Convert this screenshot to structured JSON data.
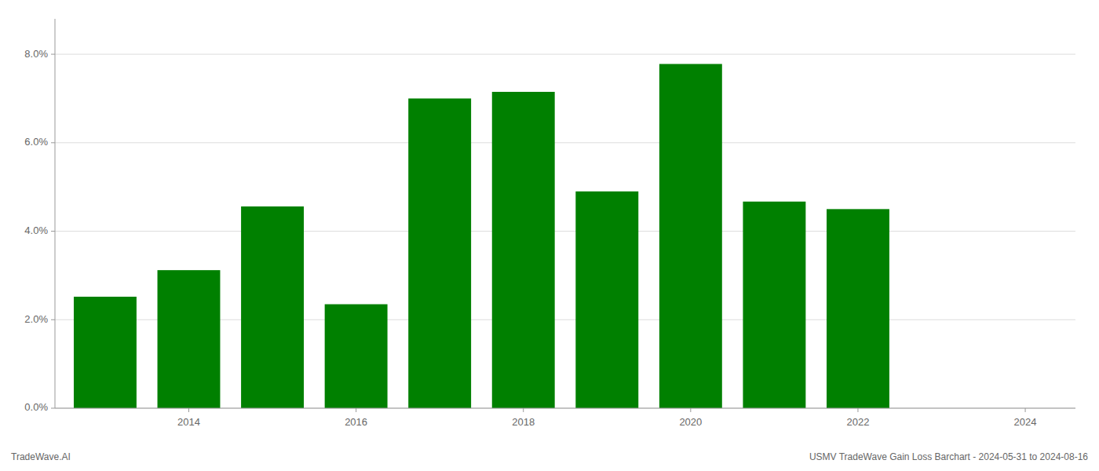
{
  "chart_data": {
    "type": "bar",
    "x": [
      2013,
      2014,
      2015,
      2016,
      2017,
      2018,
      2019,
      2020,
      2021,
      2022
    ],
    "values": [
      0.0252,
      0.0312,
      0.0456,
      0.0235,
      0.07,
      0.0715,
      0.049,
      0.0778,
      0.0467,
      0.045
    ],
    "color": "#008000",
    "xlim": [
      2012.4,
      2024.6
    ],
    "xticks": [
      2014,
      2016,
      2018,
      2020,
      2022,
      2024
    ],
    "ylim": [
      0,
      0.088
    ],
    "yticks": [
      {
        "value": 0.0,
        "label": "0.0%"
      },
      {
        "value": 0.02,
        "label": "2.0%"
      },
      {
        "value": 0.04,
        "label": "4.0%"
      },
      {
        "value": 0.06,
        "label": "6.0%"
      },
      {
        "value": 0.08,
        "label": "8.0%"
      }
    ],
    "grid": true,
    "annotations": [
      "TradeWave.AI",
      "USMV TradeWave Gain Loss Barchart - 2024-05-31 to 2024-08-16"
    ]
  }
}
